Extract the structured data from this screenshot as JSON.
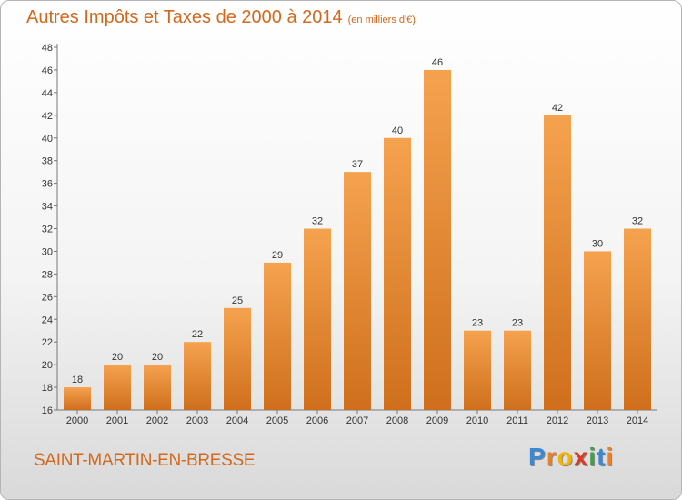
{
  "chart_data": {
    "type": "bar",
    "title": "Autres Impôts et Taxes de 2000 à 2014",
    "unit": "(en milliers d'€)",
    "categories": [
      "2000",
      "2001",
      "2002",
      "2003",
      "2004",
      "2005",
      "2006",
      "2007",
      "2008",
      "2009",
      "2010",
      "2011",
      "2012",
      "2013",
      "2014"
    ],
    "values": [
      18,
      20,
      20,
      22,
      25,
      29,
      32,
      37,
      40,
      46,
      23,
      23,
      42,
      30,
      32
    ],
    "ylim": [
      16,
      48
    ],
    "yticks": [
      16,
      18,
      20,
      22,
      24,
      26,
      28,
      30,
      32,
      34,
      36,
      38,
      40,
      42,
      44,
      46,
      48
    ],
    "xlabel": "",
    "ylabel": "",
    "grid": false,
    "bar_color_top": "#f5a24e",
    "bar_color_bottom": "#cf6f1d"
  },
  "commune": "SAINT-MARTIN-EN-BRESSE",
  "logo": {
    "letters": [
      "P",
      "r",
      "o",
      "x",
      "i",
      "t",
      "i"
    ],
    "colors": [
      "#3a88d6",
      "#e8812a",
      "#f2b400",
      "#d93b2b",
      "#43a047",
      "#3a88d6",
      "#e8812a"
    ]
  }
}
